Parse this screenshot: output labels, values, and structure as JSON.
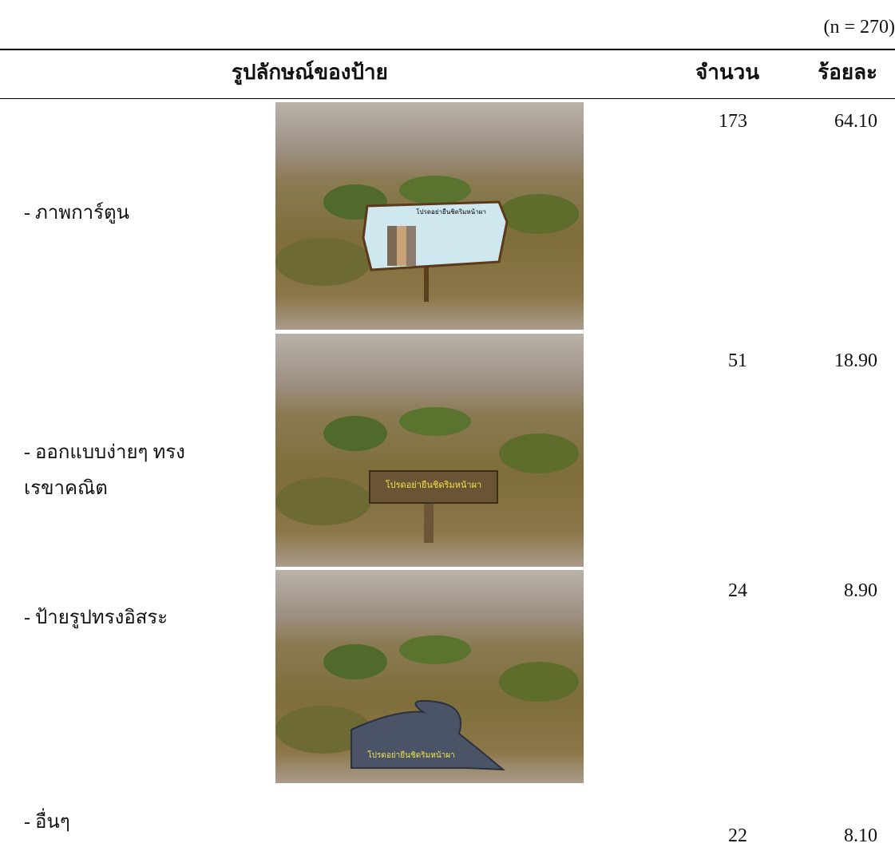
{
  "note": "(n = 270)",
  "table": {
    "headers": [
      "รูปลักษณ์ของป้าย",
      "จำนวน",
      "ร้อยละ"
    ],
    "rows": [
      {
        "label": [
          "- ภาพการ์ตูน"
        ],
        "count": "173",
        "percent": "64.10",
        "sign_text": "โปรดอย่ายืนชิดริมหน้าผา"
      },
      {
        "label": [
          "- ออกแบบง่ายๆ ทรง",
          "เรขาคณิต"
        ],
        "count": "51",
        "percent": "18.90",
        "sign_text": "โปรดอย่ายืนชิดริมหน้าผา"
      },
      {
        "label": [
          "- ป้ายรูปทรงอิสระ"
        ],
        "count": "24",
        "percent": "8.90",
        "sign_text": "โปรดอย่ายืนชิดริมหน้าผา"
      },
      {
        "label": [
          "- อื่นๆ"
        ],
        "count": "22",
        "percent": "8.10"
      }
    ]
  }
}
